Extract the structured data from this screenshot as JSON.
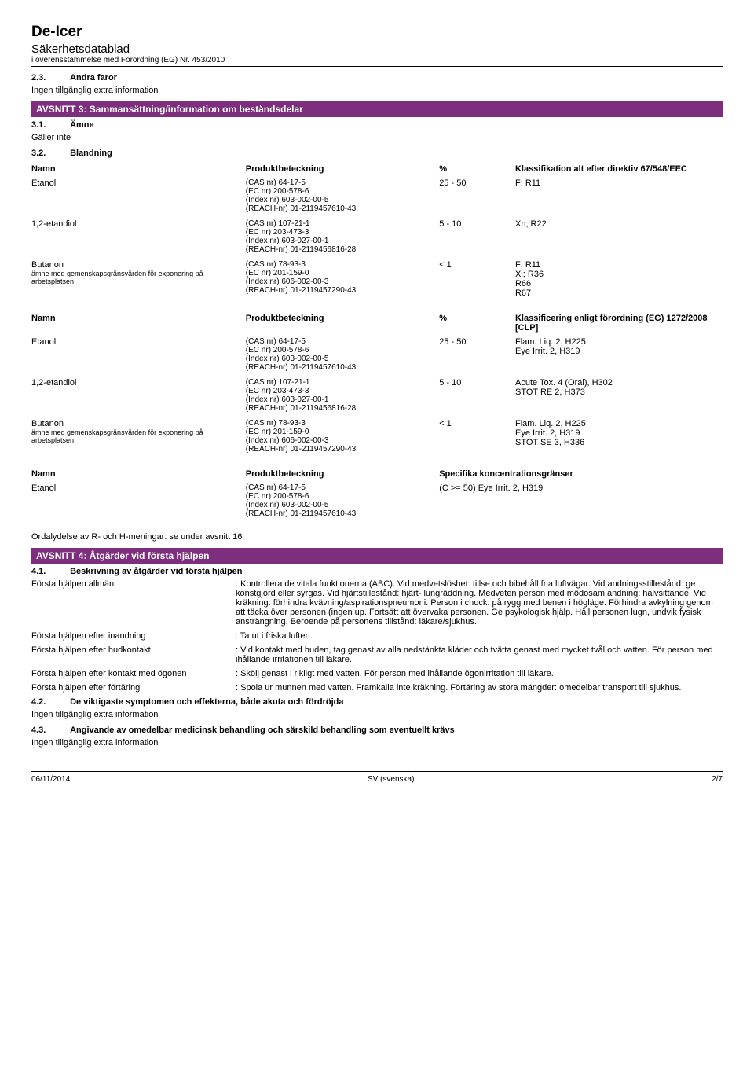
{
  "header": {
    "title": "De-Icer",
    "subtitle": "Säkerhetsdatablad",
    "conformity": "i överensstämmelse med Förordning (EG) Nr. 453/2010"
  },
  "pre": {
    "sec23_num": "2.3.",
    "sec23_title": "Andra faror",
    "sec23_body": "Ingen tillgänglig extra information"
  },
  "avsnitt3": {
    "bar": "AVSNITT 3: Sammansättning/information om beståndsdelar",
    "sec31_num": "3.1.",
    "sec31_title": "Ämne",
    "sec31_body": "Gäller inte",
    "sec32_num": "3.2.",
    "sec32_title": "Blandning"
  },
  "table1": {
    "head": {
      "name": "Namn",
      "prod": "Produktbeteckning",
      "pct": "%",
      "class": "Klassifikation alt efter direktiv 67/548/EEC"
    },
    "rows": [
      {
        "name": "Etanol",
        "cas": "(CAS nr) 64-17-5",
        "ec": "(EC nr) 200-578-6",
        "index": "(Index nr) 603-002-00-5",
        "reach": "(REACH-nr) 01-2119457610-43",
        "pct": "25 - 50",
        "class": "F; R11"
      },
      {
        "name": "1,2-etandiol",
        "cas": "(CAS nr) 107-21-1",
        "ec": "(EC nr) 203-473-3",
        "index": "(Index nr) 603-027-00-1",
        "reach": "(REACH-nr) 01-2119456816-28",
        "pct": "5 - 10",
        "class": "Xn; R22"
      },
      {
        "name": "Butanon",
        "subnote": "ämne med gemenskapsgränsvärden för exponering på arbetsplatsen",
        "cas": "(CAS nr) 78-93-3",
        "ec": "(EC nr) 201-159-0",
        "index": "(Index nr) 606-002-00-3",
        "reach": "(REACH-nr) 01-2119457290-43",
        "pct": "< 1",
        "class": "F; R11\nXi; R36\nR66\nR67"
      }
    ]
  },
  "table2": {
    "head": {
      "name": "Namn",
      "prod": "Produktbeteckning",
      "pct": "%",
      "class": "Klassificering enligt förordning (EG) 1272/2008 [CLP]"
    },
    "rows": [
      {
        "name": "Etanol",
        "cas": "(CAS nr) 64-17-5",
        "ec": "(EC nr) 200-578-6",
        "index": "(Index nr) 603-002-00-5",
        "reach": "(REACH-nr) 01-2119457610-43",
        "pct": "25 - 50",
        "class": "Flam. Liq. 2, H225\nEye Irrit. 2, H319"
      },
      {
        "name": "1,2-etandiol",
        "cas": "(CAS nr) 107-21-1",
        "ec": "(EC nr) 203-473-3",
        "index": "(Index nr) 603-027-00-1",
        "reach": "(REACH-nr) 01-2119456816-28",
        "pct": "5 - 10",
        "class": "Acute Tox. 4 (Oral), H302\nSTOT RE 2, H373"
      },
      {
        "name": "Butanon",
        "subnote": "ämne med gemenskapsgränsvärden för exponering på arbetsplatsen",
        "cas": "(CAS nr) 78-93-3",
        "ec": "(EC nr) 201-159-0",
        "index": "(Index nr) 606-002-00-3",
        "reach": "(REACH-nr) 01-2119457290-43",
        "pct": "< 1",
        "class": "Flam. Liq. 2, H225\nEye Irrit. 2, H319\nSTOT SE 3, H336"
      }
    ]
  },
  "table3": {
    "head": {
      "name": "Namn",
      "prod": "Produktbeteckning",
      "conc": "Specifika koncentrationsgränser"
    },
    "rows": [
      {
        "name": "Etanol",
        "cas": "(CAS nr) 64-17-5",
        "ec": "(EC nr) 200-578-6",
        "index": "(Index nr) 603-002-00-5",
        "reach": "(REACH-nr) 01-2119457610-43",
        "conc": "(C >= 50) Eye Irrit. 2, H319"
      }
    ]
  },
  "ordalydelse": "Ordalydelse av R- och H-meningar: se under avsnitt 16",
  "avsnitt4": {
    "bar": "AVSNITT 4: Åtgärder vid första hjälpen",
    "sec41_num": "4.1.",
    "sec41_title": "Beskrivning av åtgärder vid första hjälpen",
    "rows": [
      {
        "label": "Första hjälpen allmän",
        "text": ": Kontrollera de vitala funktionerna (ABC). Vid medvetslöshet: tillse och bibehåll fria luftvägar. Vid andningsstillestånd: ge konstgjord eller syrgas. Vid hjärtstillestånd: hjärt- lungräddning. Medveten person med mödosam andning: halvsittande. Vid kräkning: förhindra kvävning/aspirationspneumoni. Person i chock: på rygg med benen i högläge. Förhindra avkylning genom att täcka över personen (ingen up. Fortsätt att övervaka personen. Ge psykologisk hjälp. Håll personen lugn, undvik fysisk ansträngning. Beroende på personens tillstånd: läkare/sjukhus."
      },
      {
        "label": "Första hjälpen efter inandning",
        "text": ": Ta ut i friska luften."
      },
      {
        "label": "Första hjälpen efter hudkontakt",
        "text": ": Vid kontakt med huden, tag genast av alla nedstänkta kläder och tvätta genast med mycket tvål och vatten. För person med ihållande irritationen till läkare."
      },
      {
        "label": "Första hjälpen efter kontakt med ögonen",
        "text": ": Skölj genast i rikligt med vatten. För person med ihållande ögonirritation till läkare."
      },
      {
        "label": "Första hjälpen efter förtäring",
        "text": ": Spola ur munnen med vatten. Framkalla inte kräkning. Förtäring av stora mängder: omedelbar transport till sjukhus."
      }
    ],
    "sec42_num": "4.2.",
    "sec42_title": "De viktigaste symptomen och effekterna, både akuta och fördröjda",
    "sec42_body": "Ingen tillgänglig extra information",
    "sec43_num": "4.3.",
    "sec43_title": "Angivande av omedelbar medicinsk behandling och särskild behandling som eventuellt krävs",
    "sec43_body": "Ingen tillgänglig extra information"
  },
  "footer": {
    "date": "06/11/2014",
    "lang": "SV (svenska)",
    "page": "2/7"
  }
}
